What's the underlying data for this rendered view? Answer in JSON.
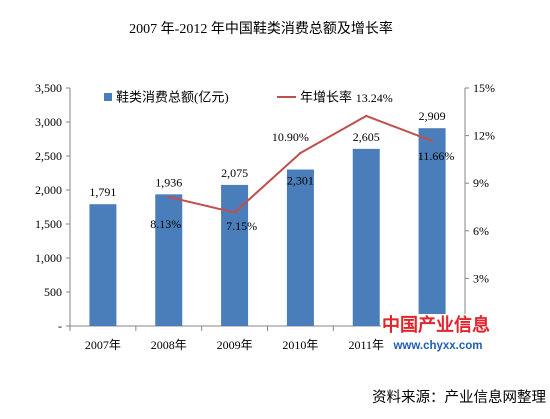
{
  "chart_data": {
    "type": "bar",
    "title": "2007 年-2012 年中国鞋类消费总额及增长率",
    "categories": [
      "2007年",
      "2008年",
      "2009年",
      "2010年",
      "2011年",
      ""
    ],
    "series": [
      {
        "name": "鞋类消费总额(亿元)",
        "type": "bar",
        "axis": "left",
        "color": "#4a7ebb",
        "values": [
          1791,
          1936,
          2075,
          2301,
          2605,
          2909
        ],
        "labels": [
          "1,791",
          "1,936",
          "2,075",
          "2,301",
          "2,605",
          "2,909"
        ]
      },
      {
        "name": "年增长率",
        "type": "line",
        "axis": "right",
        "color": "#c0504d",
        "values": [
          null,
          8.13,
          7.15,
          10.9,
          13.24,
          11.66
        ],
        "labels": [
          null,
          "8.13%",
          "7.15%",
          "10.90%",
          "13.24%",
          "11.66%"
        ]
      }
    ],
    "y_left": {
      "range": [
        0,
        3500
      ],
      "ticks": [
        0,
        500,
        1000,
        1500,
        2000,
        2500,
        3000,
        3500
      ],
      "tick_labels": [
        "-",
        "500",
        "1,000",
        "1,500",
        "2,000",
        "2,500",
        "3,000",
        "3,500"
      ]
    },
    "y_right": {
      "range": [
        0,
        15
      ],
      "ticks": [
        3,
        6,
        9,
        12,
        15
      ],
      "tick_labels": [
        "3%",
        "6%",
        "9%",
        "12%",
        "15%"
      ]
    },
    "grid": false,
    "legend": "top"
  },
  "watermark": {
    "title": "中国产业信息",
    "site": "www.chyxx.com"
  },
  "colors": {
    "axis": "#868686",
    "watermark_title": "#e3242b",
    "watermark_site": "#1f5fae"
  },
  "source": "资料来源：产业信息网整理"
}
